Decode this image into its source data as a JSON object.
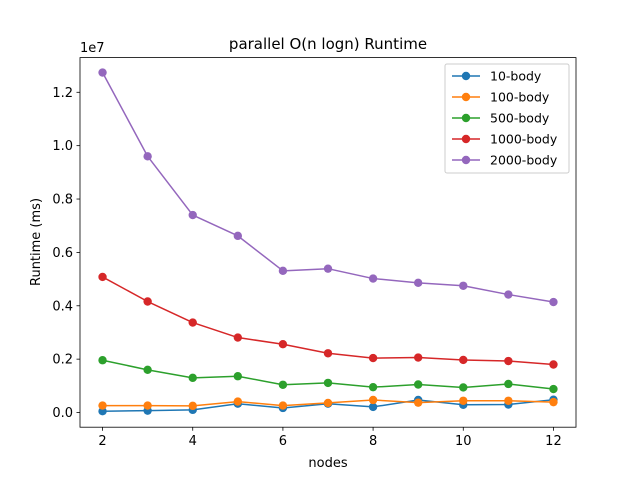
{
  "chart_data": {
    "type": "line",
    "title": "parallel O(n logn) Runtime",
    "xlabel": "nodes",
    "ylabel": "Runtime (ms)",
    "y_scale_label": "1e7",
    "x": [
      2,
      3,
      4,
      5,
      6,
      7,
      8,
      9,
      10,
      11,
      12
    ],
    "xlim": [
      1.5,
      12.5
    ],
    "ylim": [
      -0.055,
      1.33
    ],
    "xticks": [
      2,
      4,
      6,
      8,
      10,
      12
    ],
    "xtick_labels": [
      "2",
      "4",
      "6",
      "8",
      "10",
      "12"
    ],
    "yticks": [
      0.0,
      0.2,
      0.4,
      0.6,
      0.8,
      1.0,
      1.2
    ],
    "ytick_labels": [
      "0.0",
      "0.2",
      "0.4",
      "0.6",
      "0.8",
      "1.0",
      "1.2"
    ],
    "y_unit_multiplier": 10000000,
    "grid": false,
    "legend_position": "top-right",
    "series": [
      {
        "name": "10-body",
        "color": "#1f77b4",
        "values": [
          0.005,
          0.007,
          0.01,
          0.033,
          0.017,
          0.033,
          0.021,
          0.047,
          0.029,
          0.03,
          0.048
        ]
      },
      {
        "name": "100-body",
        "color": "#ff7f0e",
        "values": [
          0.026,
          0.026,
          0.025,
          0.041,
          0.026,
          0.036,
          0.047,
          0.037,
          0.044,
          0.044,
          0.039
        ]
      },
      {
        "name": "500-body",
        "color": "#2ca02c",
        "values": [
          0.196,
          0.16,
          0.13,
          0.136,
          0.104,
          0.111,
          0.095,
          0.105,
          0.094,
          0.107,
          0.088
        ]
      },
      {
        "name": "1000-body",
        "color": "#d62728",
        "values": [
          0.508,
          0.416,
          0.337,
          0.281,
          0.256,
          0.222,
          0.204,
          0.206,
          0.197,
          0.193,
          0.18
        ]
      },
      {
        "name": "2000-body",
        "color": "#9467bd",
        "values": [
          1.274,
          0.96,
          0.74,
          0.662,
          0.531,
          0.539,
          0.502,
          0.486,
          0.475,
          0.442,
          0.414
        ]
      }
    ]
  }
}
